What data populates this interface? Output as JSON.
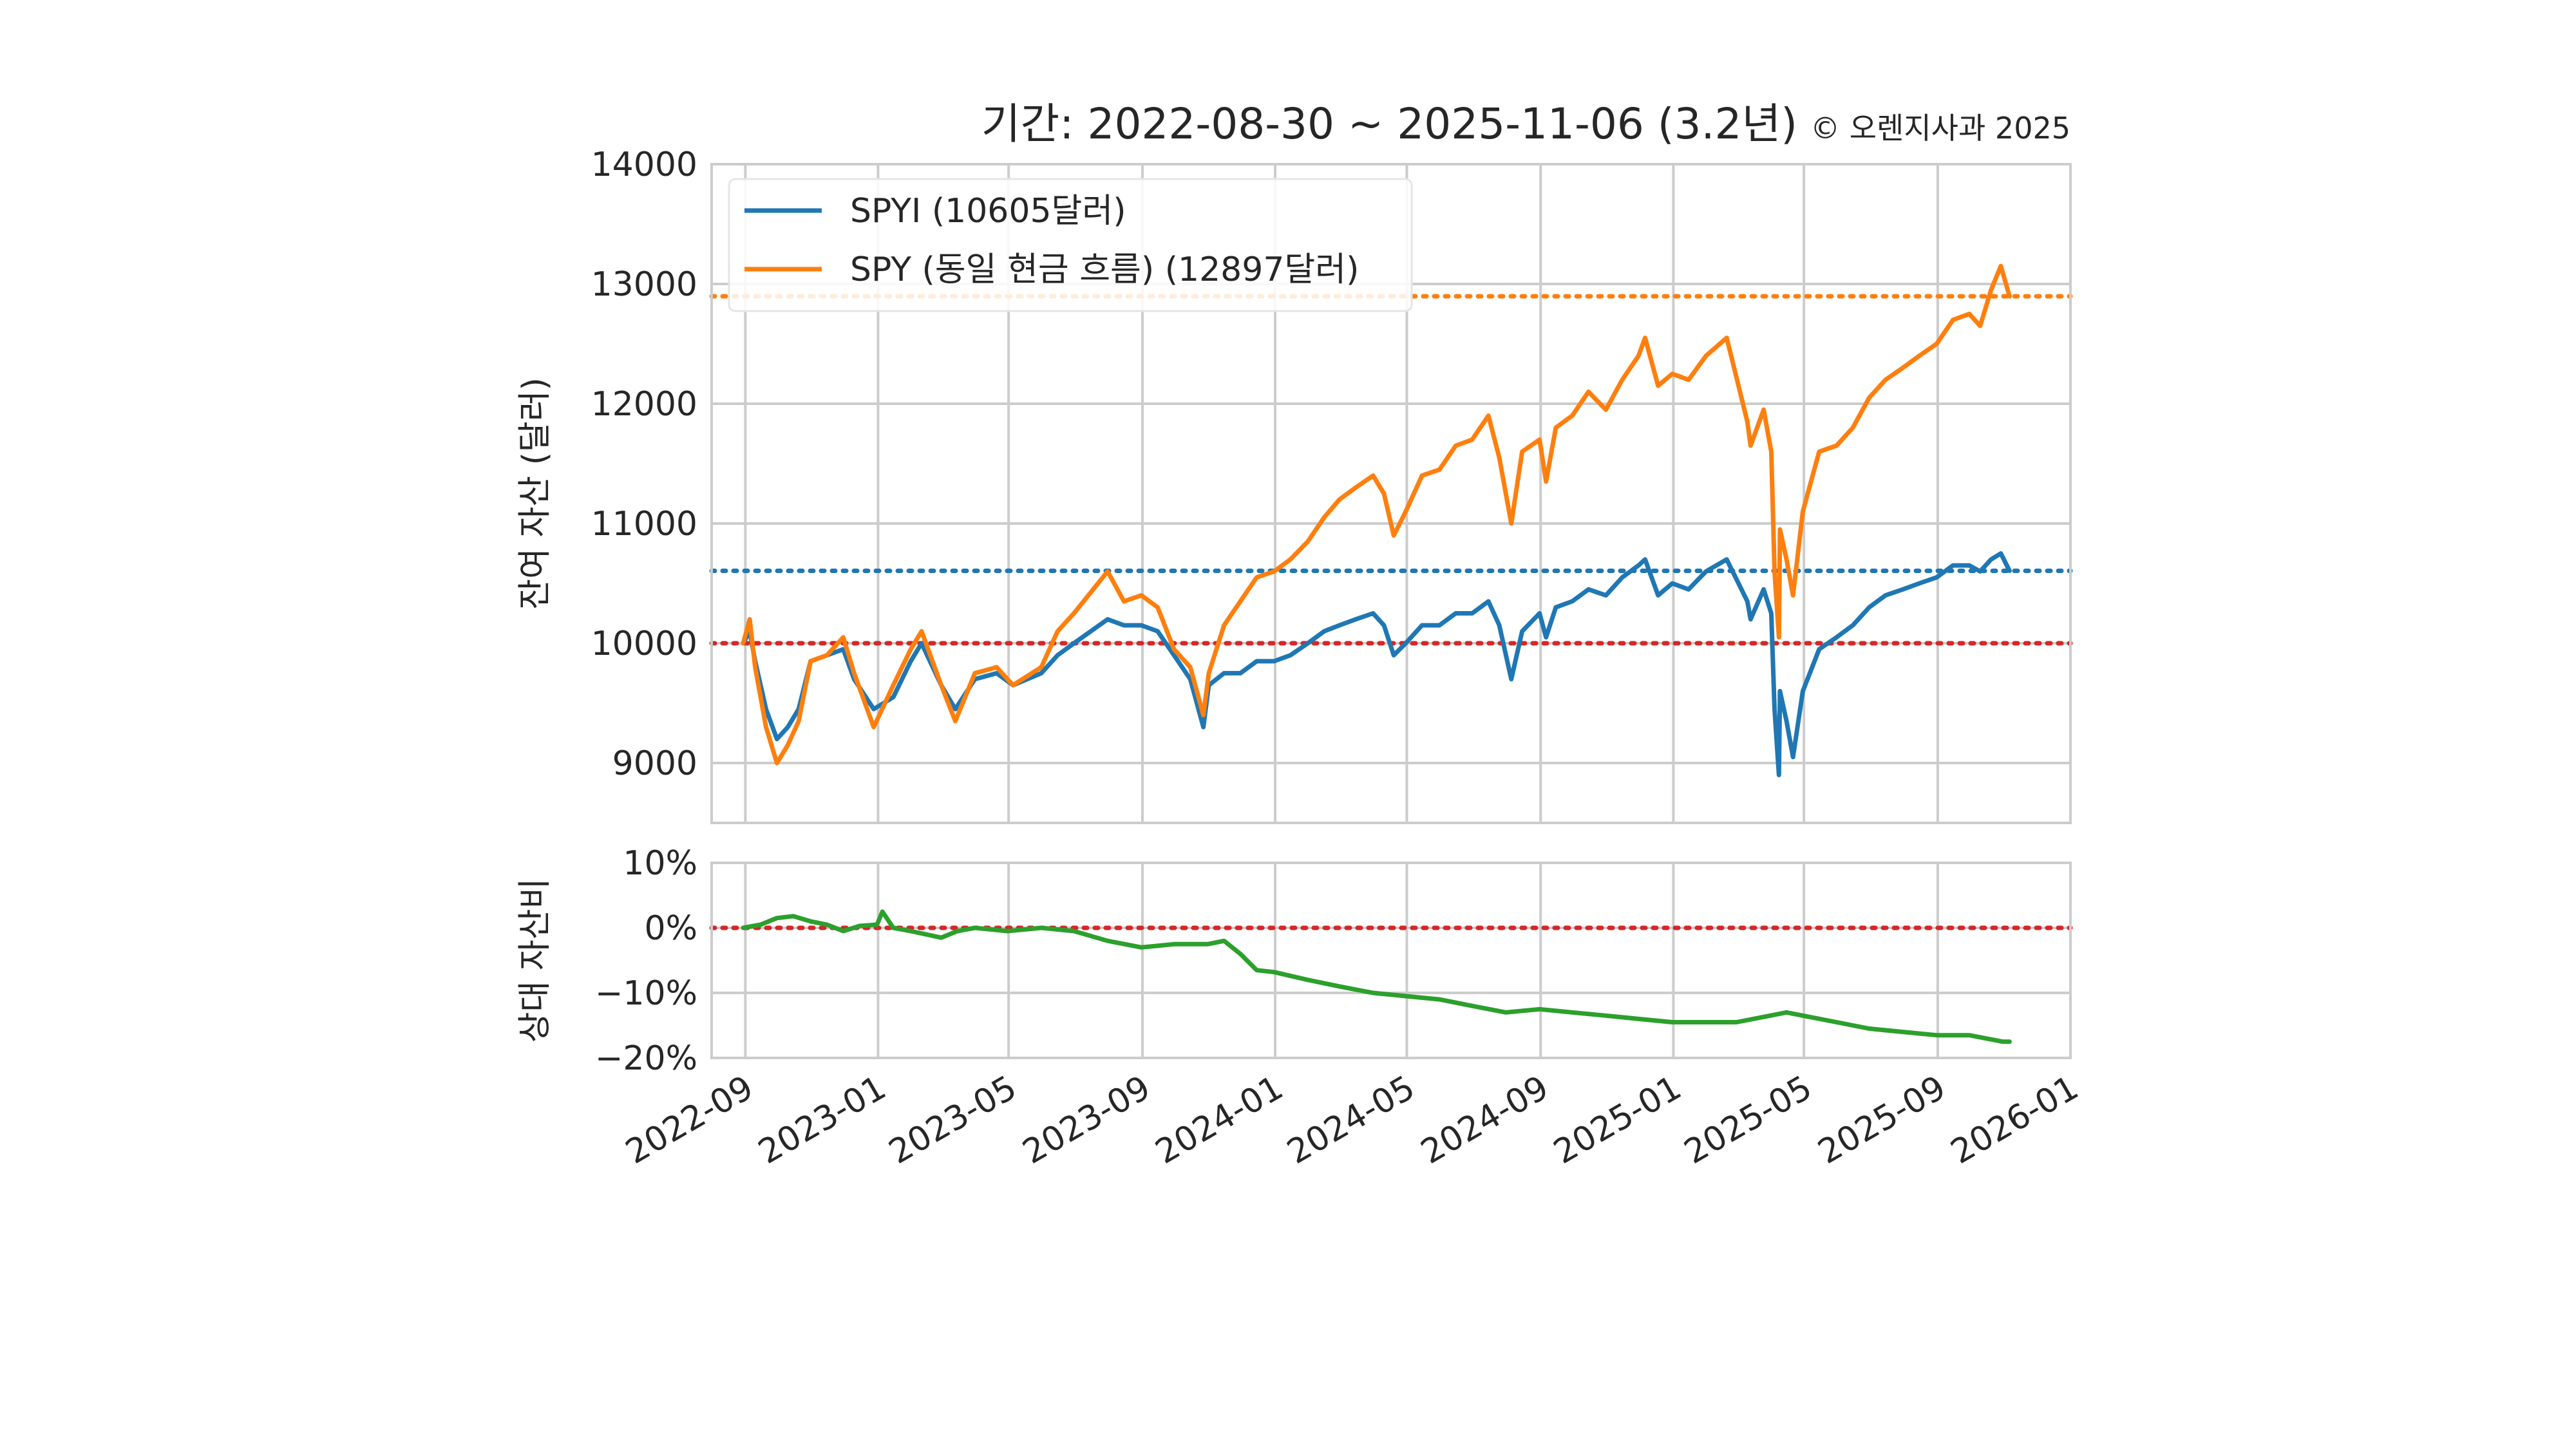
{
  "title": "기간: 2022-08-30 ~ 2025-11-06 (3.2년)",
  "copyright": "© 오렌지사과 2025",
  "colors": {
    "spyi": "#1f77b4",
    "spy": "#ff7f0e",
    "ratio": "#2ca02c",
    "baseline": "#d62728",
    "grid": "#cccccc",
    "frame": "#cccccc"
  },
  "chart_data": [
    {
      "type": "line",
      "ylabel": "잔여 자산 (달러)",
      "ylim": [
        8500,
        14000
      ],
      "yticks": [
        9000,
        10000,
        11000,
        12000,
        13000,
        14000
      ],
      "ytick_labels": [
        "9000",
        "10000",
        "11000",
        "12000",
        "13000",
        "14000"
      ],
      "legend_position": "top-left",
      "grid": true,
      "reference_lines": [
        {
          "y": 10000,
          "color_key": "baseline",
          "style": "dotted"
        },
        {
          "y": 10605,
          "color_key": "spyi",
          "style": "dotted"
        },
        {
          "y": 12897,
          "color_key": "spy",
          "style": "dotted"
        }
      ],
      "series": [
        {
          "name": "SPYI (10605달러)",
          "color_key": "spyi",
          "points": [
            [
              "2022-08-30",
              10000
            ],
            [
              "2022-09-05",
              10100
            ],
            [
              "2022-09-10",
              9850
            ],
            [
              "2022-09-20",
              9450
            ],
            [
              "2022-09-30",
              9200
            ],
            [
              "2022-10-10",
              9300
            ],
            [
              "2022-10-20",
              9450
            ],
            [
              "2022-10-31",
              9850
            ],
            [
              "2022-11-15",
              9900
            ],
            [
              "2022-11-30",
              9950
            ],
            [
              "2022-12-10",
              9700
            ],
            [
              "2022-12-28",
              9450
            ],
            [
              "2023-01-15",
              9550
            ],
            [
              "2023-01-31",
              9850
            ],
            [
              "2023-02-10",
              10000
            ],
            [
              "2023-02-28",
              9650
            ],
            [
              "2023-03-13",
              9450
            ],
            [
              "2023-03-31",
              9700
            ],
            [
              "2023-04-20",
              9750
            ],
            [
              "2023-05-05",
              9650
            ],
            [
              "2023-05-31",
              9750
            ],
            [
              "2023-06-15",
              9900
            ],
            [
              "2023-06-30",
              10000
            ],
            [
              "2023-07-31",
              10200
            ],
            [
              "2023-08-15",
              10150
            ],
            [
              "2023-08-31",
              10150
            ],
            [
              "2023-09-15",
              10100
            ],
            [
              "2023-09-30",
              9900
            ],
            [
              "2023-10-15",
              9700
            ],
            [
              "2023-10-27",
              9300
            ],
            [
              "2023-11-01",
              9650
            ],
            [
              "2023-11-15",
              9750
            ],
            [
              "2023-11-30",
              9750
            ],
            [
              "2023-12-15",
              9850
            ],
            [
              "2023-12-31",
              9850
            ],
            [
              "2024-01-15",
              9900
            ],
            [
              "2024-01-31",
              10000
            ],
            [
              "2024-02-15",
              10100
            ],
            [
              "2024-02-29",
              10150
            ],
            [
              "2024-03-15",
              10200
            ],
            [
              "2024-03-31",
              10250
            ],
            [
              "2024-04-10",
              10150
            ],
            [
              "2024-04-19",
              9900
            ],
            [
              "2024-04-30",
              10000
            ],
            [
              "2024-05-15",
              10150
            ],
            [
              "2024-05-31",
              10150
            ],
            [
              "2024-06-15",
              10250
            ],
            [
              "2024-06-30",
              10250
            ],
            [
              "2024-07-15",
              10350
            ],
            [
              "2024-07-25",
              10150
            ],
            [
              "2024-08-05",
              9700
            ],
            [
              "2024-08-15",
              10100
            ],
            [
              "2024-08-31",
              10250
            ],
            [
              "2024-09-06",
              10050
            ],
            [
              "2024-09-15",
              10300
            ],
            [
              "2024-09-30",
              10350
            ],
            [
              "2024-10-15",
              10450
            ],
            [
              "2024-10-31",
              10400
            ],
            [
              "2024-11-15",
              10550
            ],
            [
              "2024-11-30",
              10650
            ],
            [
              "2024-12-06",
              10700
            ],
            [
              "2024-12-18",
              10400
            ],
            [
              "2024-12-31",
              10500
            ],
            [
              "2025-01-15",
              10450
            ],
            [
              "2025-01-31",
              10600
            ],
            [
              "2025-02-19",
              10700
            ],
            [
              "2025-03-10",
              10350
            ],
            [
              "2025-03-13",
              10200
            ],
            [
              "2025-03-25",
              10450
            ],
            [
              "2025-04-01",
              10250
            ],
            [
              "2025-04-04",
              9450
            ],
            [
              "2025-04-08",
              8900
            ],
            [
              "2025-04-09",
              9600
            ],
            [
              "2025-04-15",
              9350
            ],
            [
              "2025-04-21",
              9050
            ],
            [
              "2025-04-30",
              9600
            ],
            [
              "2025-05-15",
              9950
            ],
            [
              "2025-05-31",
              10050
            ],
            [
              "2025-06-15",
              10150
            ],
            [
              "2025-06-30",
              10300
            ],
            [
              "2025-07-15",
              10400
            ],
            [
              "2025-07-31",
              10450
            ],
            [
              "2025-08-15",
              10500
            ],
            [
              "2025-08-31",
              10550
            ],
            [
              "2025-09-15",
              10650
            ],
            [
              "2025-09-30",
              10650
            ],
            [
              "2025-10-10",
              10600
            ],
            [
              "2025-10-20",
              10700
            ],
            [
              "2025-10-29",
              10750
            ],
            [
              "2025-11-06",
              10605
            ]
          ]
        },
        {
          "name": "SPY (동일 현금 흐름) (12897달러)",
          "color_key": "spy",
          "points": [
            [
              "2022-08-30",
              10000
            ],
            [
              "2022-09-05",
              10200
            ],
            [
              "2022-09-10",
              9800
            ],
            [
              "2022-09-20",
              9300
            ],
            [
              "2022-09-30",
              9000
            ],
            [
              "2022-10-10",
              9150
            ],
            [
              "2022-10-20",
              9350
            ],
            [
              "2022-10-31",
              9850
            ],
            [
              "2022-11-15",
              9900
            ],
            [
              "2022-11-30",
              10050
            ],
            [
              "2022-12-10",
              9750
            ],
            [
              "2022-12-28",
              9300
            ],
            [
              "2023-01-15",
              9650
            ],
            [
              "2023-01-31",
              9950
            ],
            [
              "2023-02-10",
              10100
            ],
            [
              "2023-02-28",
              9650
            ],
            [
              "2023-03-13",
              9350
            ],
            [
              "2023-03-31",
              9750
            ],
            [
              "2023-04-20",
              9800
            ],
            [
              "2023-05-05",
              9650
            ],
            [
              "2023-05-31",
              9800
            ],
            [
              "2023-06-15",
              10100
            ],
            [
              "2023-06-30",
              10250
            ],
            [
              "2023-07-31",
              10600
            ],
            [
              "2023-08-15",
              10350
            ],
            [
              "2023-08-31",
              10400
            ],
            [
              "2023-09-15",
              10300
            ],
            [
              "2023-09-30",
              9950
            ],
            [
              "2023-10-15",
              9800
            ],
            [
              "2023-10-27",
              9400
            ],
            [
              "2023-11-01",
              9750
            ],
            [
              "2023-11-15",
              10150
            ],
            [
              "2023-11-30",
              10350
            ],
            [
              "2023-12-15",
              10550
            ],
            [
              "2023-12-31",
              10600
            ],
            [
              "2024-01-15",
              10700
            ],
            [
              "2024-01-31",
              10850
            ],
            [
              "2024-02-15",
              11050
            ],
            [
              "2024-02-29",
              11200
            ],
            [
              "2024-03-15",
              11300
            ],
            [
              "2024-03-31",
              11400
            ],
            [
              "2024-04-10",
              11250
            ],
            [
              "2024-04-19",
              10900
            ],
            [
              "2024-04-30",
              11100
            ],
            [
              "2024-05-15",
              11400
            ],
            [
              "2024-05-31",
              11450
            ],
            [
              "2024-06-15",
              11650
            ],
            [
              "2024-06-30",
              11700
            ],
            [
              "2024-07-15",
              11900
            ],
            [
              "2024-07-25",
              11550
            ],
            [
              "2024-08-05",
              11000
            ],
            [
              "2024-08-15",
              11600
            ],
            [
              "2024-08-31",
              11700
            ],
            [
              "2024-09-06",
              11350
            ],
            [
              "2024-09-15",
              11800
            ],
            [
              "2024-09-30",
              11900
            ],
            [
              "2024-10-15",
              12100
            ],
            [
              "2024-10-31",
              11950
            ],
            [
              "2024-11-15",
              12200
            ],
            [
              "2024-11-30",
              12400
            ],
            [
              "2024-12-06",
              12550
            ],
            [
              "2024-12-18",
              12150
            ],
            [
              "2024-12-31",
              12250
            ],
            [
              "2025-01-15",
              12200
            ],
            [
              "2025-01-31",
              12400
            ],
            [
              "2025-02-19",
              12550
            ],
            [
              "2025-03-10",
              11850
            ],
            [
              "2025-03-13",
              11650
            ],
            [
              "2025-03-25",
              11950
            ],
            [
              "2025-04-01",
              11600
            ],
            [
              "2025-04-04",
              10600
            ],
            [
              "2025-04-08",
              10050
            ],
            [
              "2025-04-09",
              10950
            ],
            [
              "2025-04-15",
              10700
            ],
            [
              "2025-04-21",
              10400
            ],
            [
              "2025-04-30",
              11100
            ],
            [
              "2025-05-15",
              11600
            ],
            [
              "2025-05-31",
              11650
            ],
            [
              "2025-06-15",
              11800
            ],
            [
              "2025-06-30",
              12050
            ],
            [
              "2025-07-15",
              12200
            ],
            [
              "2025-07-31",
              12300
            ],
            [
              "2025-08-15",
              12400
            ],
            [
              "2025-08-31",
              12500
            ],
            [
              "2025-09-15",
              12700
            ],
            [
              "2025-09-30",
              12750
            ],
            [
              "2025-10-10",
              12650
            ],
            [
              "2025-10-20",
              12950
            ],
            [
              "2025-10-29",
              13150
            ],
            [
              "2025-11-06",
              12897
            ]
          ]
        }
      ]
    },
    {
      "type": "line",
      "ylabel": "상대 자산비",
      "ylim": [
        -20,
        10
      ],
      "yticks": [
        -20,
        -10,
        0,
        10
      ],
      "ytick_labels": [
        "−20%",
        "−10%",
        "0%",
        "10%"
      ],
      "grid": true,
      "reference_lines": [
        {
          "y": 0,
          "color_key": "baseline",
          "style": "dotted"
        }
      ],
      "series": [
        {
          "color_key": "ratio",
          "points": [
            [
              "2022-08-30",
              0
            ],
            [
              "2022-09-15",
              0.5
            ],
            [
              "2022-09-30",
              1.5
            ],
            [
              "2022-10-15",
              1.8
            ],
            [
              "2022-10-31",
              1.0
            ],
            [
              "2022-11-15",
              0.5
            ],
            [
              "2022-11-30",
              -0.5
            ],
            [
              "2022-12-15",
              0.3
            ],
            [
              "2022-12-31",
              0.5
            ],
            [
              "2023-01-05",
              2.5
            ],
            [
              "2023-01-15",
              0.0
            ],
            [
              "2023-01-31",
              -0.5
            ],
            [
              "2023-02-28",
              -1.5
            ],
            [
              "2023-03-15",
              -0.5
            ],
            [
              "2023-03-31",
              0.0
            ],
            [
              "2023-04-30",
              -0.5
            ],
            [
              "2023-05-31",
              0.0
            ],
            [
              "2023-06-30",
              -0.5
            ],
            [
              "2023-07-31",
              -2.0
            ],
            [
              "2023-08-31",
              -3.0
            ],
            [
              "2023-09-30",
              -2.5
            ],
            [
              "2023-10-31",
              -2.5
            ],
            [
              "2023-11-15",
              -2.0
            ],
            [
              "2023-11-30",
              -4.0
            ],
            [
              "2023-12-15",
              -6.5
            ],
            [
              "2023-12-31",
              -6.8
            ],
            [
              "2024-01-31",
              -8.0
            ],
            [
              "2024-02-29",
              -9.0
            ],
            [
              "2024-03-31",
              -10.0
            ],
            [
              "2024-04-30",
              -10.5
            ],
            [
              "2024-05-31",
              -11.0
            ],
            [
              "2024-06-30",
              -12.0
            ],
            [
              "2024-07-31",
              -13.0
            ],
            [
              "2024-08-31",
              -12.5
            ],
            [
              "2024-09-30",
              -13.0
            ],
            [
              "2024-10-31",
              -13.5
            ],
            [
              "2024-11-30",
              -14.0
            ],
            [
              "2024-12-31",
              -14.5
            ],
            [
              "2025-01-31",
              -14.5
            ],
            [
              "2025-02-28",
              -14.5
            ],
            [
              "2025-03-31",
              -13.5
            ],
            [
              "2025-04-15",
              -13.0
            ],
            [
              "2025-04-30",
              -13.5
            ],
            [
              "2025-05-31",
              -14.5
            ],
            [
              "2025-06-30",
              -15.5
            ],
            [
              "2025-07-31",
              -16.0
            ],
            [
              "2025-08-31",
              -16.5
            ],
            [
              "2025-09-30",
              -16.5
            ],
            [
              "2025-10-31",
              -17.5
            ],
            [
              "2025-11-06",
              -17.5
            ]
          ]
        }
      ]
    }
  ],
  "x_axis": {
    "xlim": [
      "2022-08-01",
      "2026-01-01"
    ],
    "ticks": [
      "2022-09",
      "2023-01",
      "2023-05",
      "2023-09",
      "2024-01",
      "2024-05",
      "2024-09",
      "2025-01",
      "2025-05",
      "2025-09",
      "2026-01"
    ]
  }
}
